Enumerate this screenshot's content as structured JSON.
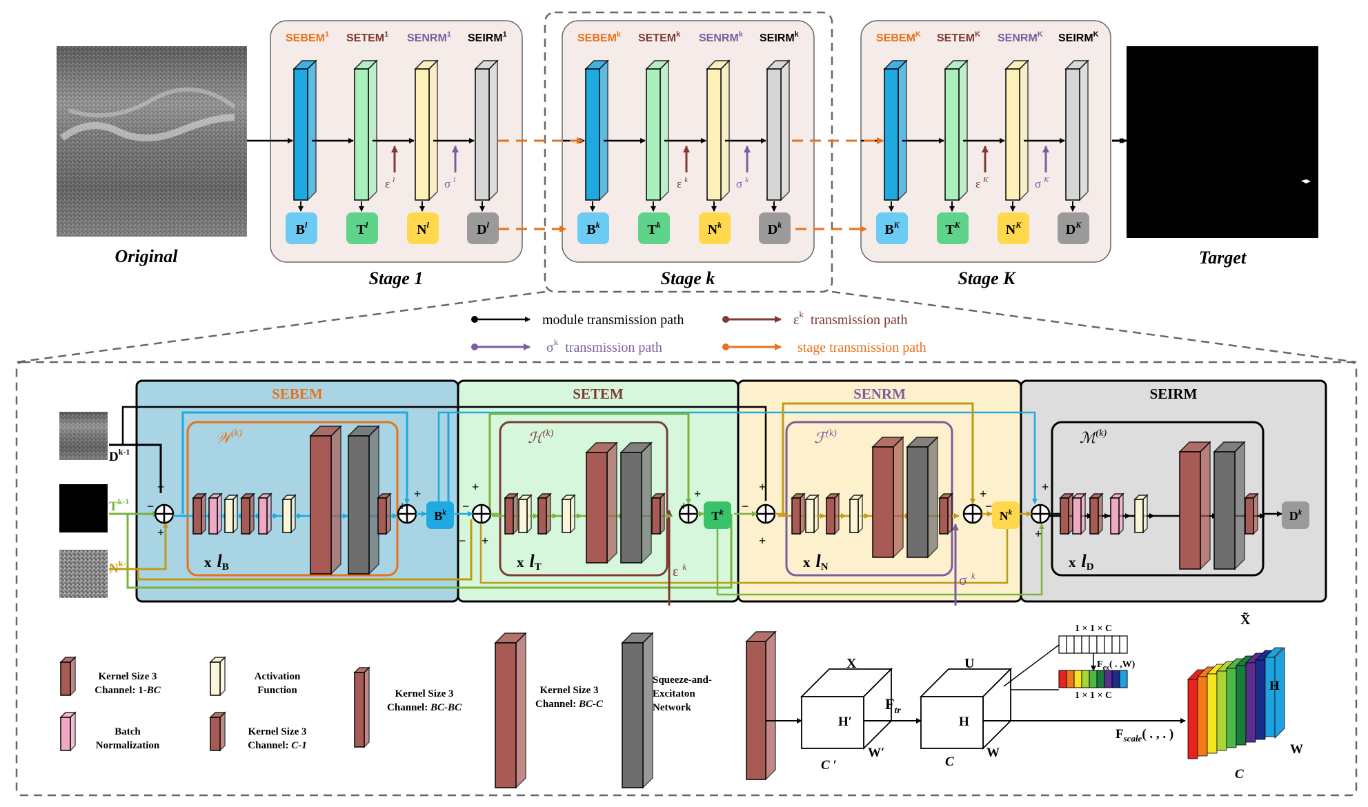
{
  "top": {
    "input_label": "Original",
    "target_label": "Target",
    "stages": [
      {
        "label": "Stage 1",
        "modules": [
          {
            "name": "SEBEM",
            "sup": "1"
          },
          {
            "name": "SETEM",
            "sup": "1"
          },
          {
            "name": "SENRM",
            "sup": "1"
          },
          {
            "name": "SEIRM",
            "sup": "1"
          }
        ],
        "outputs": [
          "B",
          "T",
          "N",
          "D"
        ],
        "out_sup": "l",
        "eps": "ε",
        "eps_sup": "l",
        "sigma": "σ",
        "sigma_sup": "l"
      },
      {
        "label": "Stage k",
        "modules": [
          {
            "name": "SEBEM",
            "sup": "k"
          },
          {
            "name": "SETEM",
            "sup": "k"
          },
          {
            "name": "SENRM",
            "sup": "k"
          },
          {
            "name": "SEIRM",
            "sup": "k"
          }
        ],
        "outputs": [
          "B",
          "T",
          "N",
          "D"
        ],
        "out_sup": "k",
        "eps": "ε",
        "eps_sup": "k",
        "sigma": "σ",
        "sigma_sup": "k"
      },
      {
        "label": "Stage K",
        "modules": [
          {
            "name": "SEBEM",
            "sup": "K"
          },
          {
            "name": "SETEM",
            "sup": "K"
          },
          {
            "name": "SENRM",
            "sup": "K"
          },
          {
            "name": "SEIRM",
            "sup": "K"
          }
        ],
        "outputs": [
          "B",
          "T",
          "N",
          "D"
        ],
        "out_sup": "K",
        "eps": "ε",
        "eps_sup": "K",
        "sigma": "σ",
        "sigma_sup": "K"
      }
    ]
  },
  "legend": {
    "module_path": "module transmission path",
    "eps_sym": "ε",
    "eps_sup": "k",
    "eps_path": "transmission path",
    "sigma_sym": "σ",
    "sigma_sup": "k",
    "sigma_path": "transmission path",
    "stage_path": "stage transmission path"
  },
  "detail": {
    "modules": [
      "SEBEM",
      "SETEM",
      "SENRM",
      "SEIRM"
    ],
    "inputs": [
      {
        "sym": "D",
        "sup": "k-1"
      },
      {
        "sym": "T",
        "sup": "k-1"
      },
      {
        "sym": "N",
        "sup": "k-1"
      }
    ],
    "networks": [
      {
        "sym": "𝒲",
        "sup": "(k)",
        "repeat": "x",
        "l": "l",
        "sub": "B"
      },
      {
        "sym": "ℋ",
        "sup": "(k)",
        "repeat": "x",
        "l": "l",
        "sub": "T"
      },
      {
        "sym": "ℱ",
        "sup": "(k)",
        "repeat": "x",
        "l": "l",
        "sub": "N"
      },
      {
        "sym": "ℳ",
        "sup": "(k)",
        "repeat": "x",
        "l": "l",
        "sub": "D"
      }
    ],
    "outputs": [
      {
        "sym": "B",
        "sup": "k"
      },
      {
        "sym": "T",
        "sup": "k"
      },
      {
        "sym": "N",
        "sup": "k"
      },
      {
        "sym": "D",
        "sup": "k"
      }
    ],
    "eps": {
      "sym": "ε",
      "sup": "k"
    },
    "sigma": {
      "sym": "σ",
      "sup": "k"
    },
    "signs": {
      "plus": "+",
      "minus": "−"
    }
  },
  "key": {
    "items": [
      {
        "title": "Kernel Size 3",
        "sub": "Channel: 1-",
        "sub_it": "BC"
      },
      {
        "title": "Batch",
        "sub": "Normalization",
        "sub_it": ""
      },
      {
        "title": "Activation",
        "sub": "Function",
        "sub_it": ""
      },
      {
        "title": "Kernel Size 3",
        "sub": "Channel: ",
        "sub_it": "C-1"
      },
      {
        "title": "Kernel Size 3",
        "sub": "Channel: ",
        "sub_it": "BC-BC"
      },
      {
        "title": "Kernel Size 3",
        "sub": "Channel: ",
        "sub_it": "BC-C"
      },
      {
        "title": "Squeeze-and-",
        "sub": "Excitaton",
        "sub3": "Network"
      }
    ]
  },
  "se": {
    "X": "X",
    "Hp": "H′",
    "Wp": "W′",
    "Cp": "C ′",
    "Ftr": "F",
    "Ftr_sub": "tr",
    "U": "U",
    "H": "H",
    "W": "W",
    "C": "C",
    "vec_top": "1 × 1 × C",
    "vec_bot": "1 × 1 × C",
    "Fex": "F",
    "Fex_sub": "ex",
    "Fex_args": "( . ,W)",
    "Fscale": "F",
    "Fscale_sub": "scale",
    "Fscale_args": "( . , . )",
    "Xt": "X̃",
    "H2": "H",
    "W2": "W",
    "C2": "C"
  },
  "colors": {
    "sebem_bg": "#a8d4e3",
    "setem_bg": "#d6f7dc",
    "senrm_bg": "#fdf0cc",
    "seirm_bg": "#dddddd",
    "blue": "#1fa9e1",
    "green": "#78b33d",
    "gold": "#c09a16",
    "brown": "#7e3a33",
    "purple": "#7b5d9f",
    "orange": "#e8711c",
    "layer_brown": "#a85a55",
    "layer_gray": "#6e6e6e",
    "layer_pink": "#f1a8c4",
    "layer_cream": "#fcf6d8"
  }
}
